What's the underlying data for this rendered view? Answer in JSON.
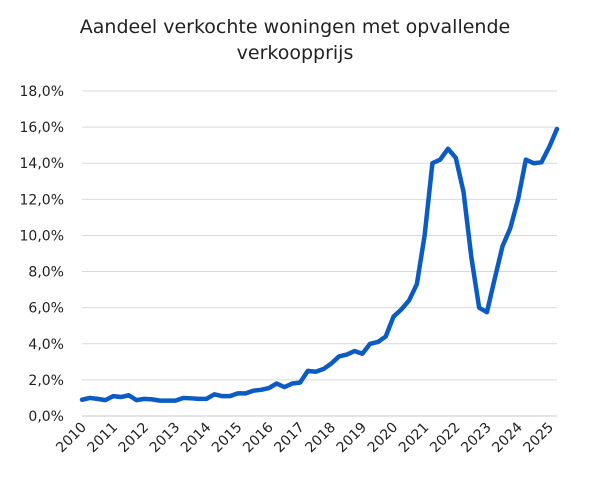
{
  "chart_data": {
    "type": "line",
    "title_lines": [
      "Aandeel verkochte woningen met opvallende",
      "verkoopprijs"
    ],
    "xlabel": "",
    "ylabel": "",
    "ylim": [
      0,
      18
    ],
    "xlim": [
      2010,
      2025.25
    ],
    "grid": true,
    "legend": "none",
    "y_ticks": [
      {
        "value": 0,
        "label": "0,0%"
      },
      {
        "value": 2,
        "label": "2,0%"
      },
      {
        "value": 4,
        "label": "4,0%"
      },
      {
        "value": 6,
        "label": "6,0%"
      },
      {
        "value": 8,
        "label": "8,0%"
      },
      {
        "value": 10,
        "label": "10,0%"
      },
      {
        "value": 12,
        "label": "12,0%"
      },
      {
        "value": 14,
        "label": "14,0%"
      },
      {
        "value": 16,
        "label": "16,0%"
      },
      {
        "value": 18,
        "label": "18,0%"
      }
    ],
    "x_ticks": [
      {
        "value": 2010,
        "label": "2010"
      },
      {
        "value": 2011,
        "label": "2011"
      },
      {
        "value": 2012,
        "label": "2012"
      },
      {
        "value": 2013,
        "label": "2013"
      },
      {
        "value": 2014,
        "label": "2014"
      },
      {
        "value": 2015,
        "label": "2015"
      },
      {
        "value": 2016,
        "label": "2016"
      },
      {
        "value": 2017,
        "label": "2017"
      },
      {
        "value": 2018,
        "label": "2018"
      },
      {
        "value": 2019,
        "label": "2019"
      },
      {
        "value": 2020,
        "label": "2020"
      },
      {
        "value": 2021,
        "label": "2021"
      },
      {
        "value": 2022,
        "label": "2022"
      },
      {
        "value": 2023,
        "label": "2023"
      },
      {
        "value": 2024,
        "label": "2024"
      },
      {
        "value": 2025,
        "label": "2025"
      }
    ],
    "series": [
      {
        "color": "#0a5bc4",
        "points": [
          [
            2010.0,
            0.9
          ],
          [
            2010.25,
            1.0
          ],
          [
            2010.5,
            0.95
          ],
          [
            2010.75,
            0.88
          ],
          [
            2011.0,
            1.1
          ],
          [
            2011.25,
            1.05
          ],
          [
            2011.5,
            1.15
          ],
          [
            2011.75,
            0.88
          ],
          [
            2012.0,
            0.95
          ],
          [
            2012.25,
            0.92
          ],
          [
            2012.5,
            0.85
          ],
          [
            2012.75,
            0.85
          ],
          [
            2013.0,
            0.85
          ],
          [
            2013.25,
            1.0
          ],
          [
            2013.5,
            0.98
          ],
          [
            2013.75,
            0.95
          ],
          [
            2014.0,
            0.95
          ],
          [
            2014.25,
            1.2
          ],
          [
            2014.5,
            1.1
          ],
          [
            2014.75,
            1.1
          ],
          [
            2015.0,
            1.25
          ],
          [
            2015.25,
            1.25
          ],
          [
            2015.5,
            1.4
          ],
          [
            2015.75,
            1.45
          ],
          [
            2016.0,
            1.55
          ],
          [
            2016.25,
            1.8
          ],
          [
            2016.5,
            1.6
          ],
          [
            2016.75,
            1.8
          ],
          [
            2017.0,
            1.85
          ],
          [
            2017.25,
            2.5
          ],
          [
            2017.5,
            2.45
          ],
          [
            2017.75,
            2.6
          ],
          [
            2018.0,
            2.9
          ],
          [
            2018.25,
            3.3
          ],
          [
            2018.5,
            3.4
          ],
          [
            2018.75,
            3.6
          ],
          [
            2019.0,
            3.45
          ],
          [
            2019.25,
            4.0
          ],
          [
            2019.5,
            4.1
          ],
          [
            2019.75,
            4.4
          ],
          [
            2020.0,
            5.5
          ],
          [
            2020.25,
            5.9
          ],
          [
            2020.5,
            6.4
          ],
          [
            2020.75,
            7.3
          ],
          [
            2021.0,
            10.0
          ],
          [
            2021.25,
            14.0
          ],
          [
            2021.5,
            14.2
          ],
          [
            2021.75,
            14.8
          ],
          [
            2022.0,
            14.3
          ],
          [
            2022.25,
            12.4
          ],
          [
            2022.5,
            8.8
          ],
          [
            2022.75,
            6.0
          ],
          [
            2023.0,
            5.75
          ],
          [
            2023.25,
            7.6
          ],
          [
            2023.5,
            9.4
          ],
          [
            2023.75,
            10.4
          ],
          [
            2024.0,
            12.0
          ],
          [
            2024.25,
            14.2
          ],
          [
            2024.5,
            14.0
          ],
          [
            2024.75,
            14.05
          ],
          [
            2025.0,
            14.9
          ],
          [
            2025.25,
            15.9
          ]
        ]
      }
    ]
  }
}
